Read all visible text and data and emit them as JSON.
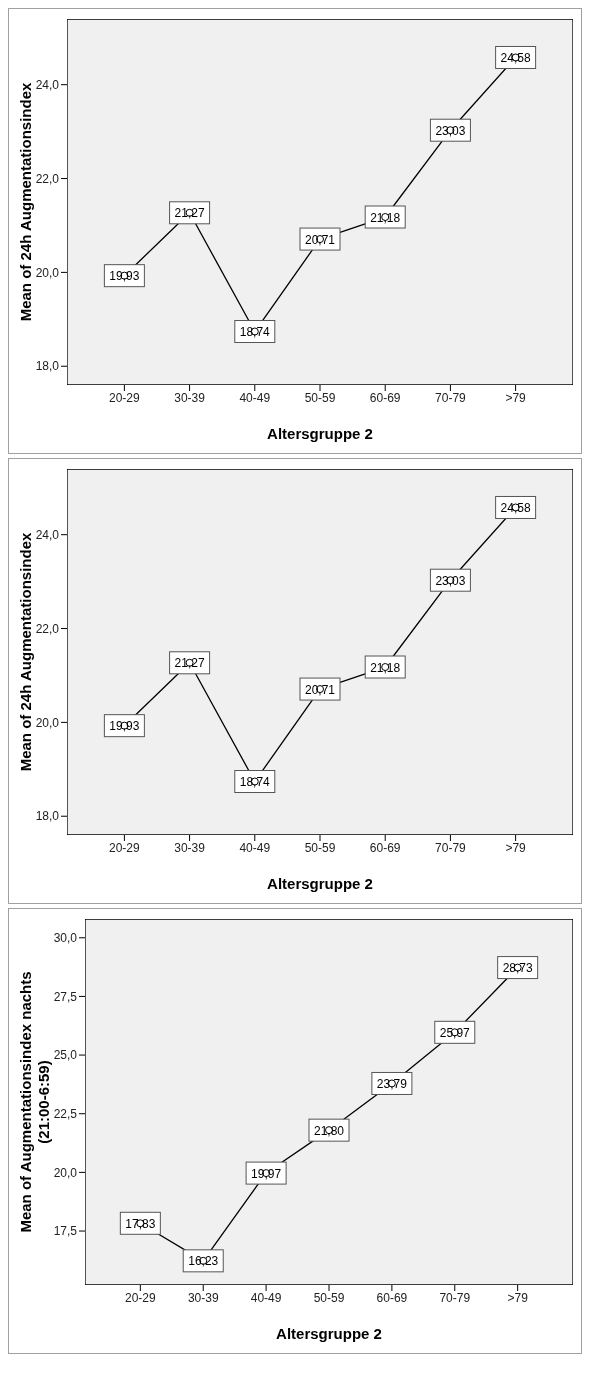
{
  "chart_data": [
    {
      "type": "line",
      "xlabel": "Altersgruppe 2",
      "ylabel": "Mean of 24h Augmentationsindex",
      "categories": [
        "20-29",
        "30-39",
        "40-49",
        "50-59",
        "60-69",
        "70-79",
        ">79"
      ],
      "series": [
        {
          "color": "#000000",
          "values": [
            19.93,
            21.27,
            18.74,
            20.71,
            21.18,
            23.03,
            24.58
          ],
          "value_labels": [
            "19,93",
            "21,27",
            "18,74",
            "20,71",
            "21,18",
            "23,03",
            "24,58"
          ]
        }
      ],
      "ylim": [
        17.6,
        25.4
      ],
      "yticks": [
        {
          "value": 18,
          "label": "18,0"
        },
        {
          "value": 20,
          "label": "20,0"
        },
        {
          "value": 22,
          "label": "22,0"
        },
        {
          "value": 24,
          "label": "24,0"
        }
      ],
      "grid": false,
      "marker": "circle",
      "line_style": "solid"
    },
    {
      "type": "line",
      "xlabel": "Altersgruppe 2",
      "ylabel": "Mean of 24h Augmentationsindex",
      "categories": [
        "20-29",
        "30-39",
        "40-49",
        "50-59",
        "60-69",
        "70-79",
        ">79"
      ],
      "series": [
        {
          "color": "#000000",
          "values": [
            19.93,
            21.27,
            18.74,
            20.71,
            21.18,
            23.03,
            24.58
          ],
          "value_labels": [
            "19,93",
            "21,27",
            "18,74",
            "20,71",
            "21,18",
            "23,03",
            "24,58"
          ]
        }
      ],
      "ylim": [
        17.6,
        25.4
      ],
      "yticks": [
        {
          "value": 18,
          "label": "18,0"
        },
        {
          "value": 20,
          "label": "20,0"
        },
        {
          "value": 22,
          "label": "22,0"
        },
        {
          "value": 24,
          "label": "24,0"
        }
      ],
      "grid": false,
      "marker": "circle",
      "line_style": "solid"
    },
    {
      "type": "line",
      "xlabel": "Altersgruppe 2",
      "ylabel": "Mean of Augmentationsindex nachts (21:00-6:59)",
      "categories": [
        "20-29",
        "30-39",
        "40-49",
        "50-59",
        "60-69",
        "70-79",
        ">79"
      ],
      "series": [
        {
          "color": "#000000",
          "values": [
            17.83,
            16.23,
            19.97,
            21.8,
            23.79,
            25.97,
            28.73
          ],
          "value_labels": [
            "17,83",
            "16,23",
            "19,97",
            "21,80",
            "23,79",
            "25,97",
            "28,73"
          ]
        }
      ],
      "ylim": [
        15.2,
        30.8
      ],
      "yticks": [
        {
          "value": 17.5,
          "label": "17,5"
        },
        {
          "value": 20,
          "label": "20,0"
        },
        {
          "value": 22.5,
          "label": "22,5"
        },
        {
          "value": 25,
          "label": "25,0"
        },
        {
          "value": 27.5,
          "label": "27,5"
        },
        {
          "value": 30,
          "label": "30,0"
        }
      ],
      "grid": false,
      "marker": "circle",
      "line_style": "solid"
    }
  ]
}
